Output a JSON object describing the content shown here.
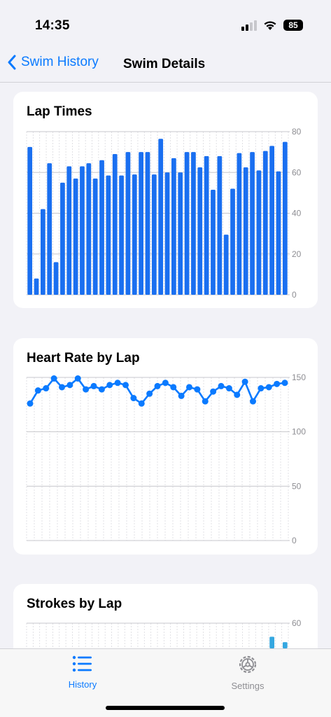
{
  "status": {
    "time": "14:35",
    "battery": "85"
  },
  "nav": {
    "back_label": "Swim History",
    "title": "Swim Details"
  },
  "colors": {
    "accent": "#0a7aff",
    "bar": "#1a6ff0",
    "stroke_bar": "#35a7e0",
    "grid": "#d9d9de"
  },
  "charts": {
    "lap_times": {
      "title": "Lap Times"
    },
    "heart_rate": {
      "title": "Heart Rate by Lap"
    },
    "strokes": {
      "title": "Strokes by Lap"
    }
  },
  "tabs": [
    {
      "label": "History",
      "icon": "list-icon",
      "active": true
    },
    {
      "label": "Settings",
      "icon": "gear-icon",
      "active": false
    }
  ],
  "chart_data": [
    {
      "type": "bar",
      "title": "Lap Times",
      "ylim": [
        0,
        80
      ],
      "yticks": [
        0,
        20,
        40,
        60,
        80
      ],
      "grid": true,
      "values": [
        72.5,
        8,
        42,
        64.5,
        16,
        55,
        63,
        57,
        63,
        64.5,
        57,
        66,
        58.5,
        69,
        58.5,
        70,
        59,
        70,
        70,
        59,
        76.5,
        60,
        67,
        60,
        70,
        70,
        62.5,
        68,
        51.5,
        68,
        29.5,
        52,
        69.5,
        62.5,
        70,
        61,
        70.5,
        73,
        60.5,
        75
      ]
    },
    {
      "type": "line",
      "title": "Heart Rate by Lap",
      "ylim": [
        0,
        150
      ],
      "yticks": [
        0,
        50,
        100,
        150
      ],
      "grid": true,
      "values": [
        126,
        138,
        140,
        149,
        141,
        143,
        149,
        139,
        142,
        139,
        143,
        145,
        143,
        131,
        126,
        135,
        142,
        145,
        141,
        133,
        141,
        139,
        128,
        137,
        142,
        140,
        134,
        146,
        128,
        140,
        141,
        144,
        145
      ]
    },
    {
      "type": "bar",
      "title": "Strokes by Lap",
      "ylim": [
        0,
        60
      ],
      "yticks": [
        60
      ],
      "grid": true,
      "values": [
        0,
        0,
        0,
        0,
        0,
        0,
        0,
        0,
        0,
        0,
        0,
        0,
        0,
        0,
        0,
        0,
        0,
        0,
        0,
        0,
        0,
        0,
        0,
        0,
        0,
        0,
        0,
        0,
        0,
        0,
        0,
        0,
        0,
        0,
        0,
        0,
        0,
        55,
        0,
        53
      ]
    }
  ]
}
